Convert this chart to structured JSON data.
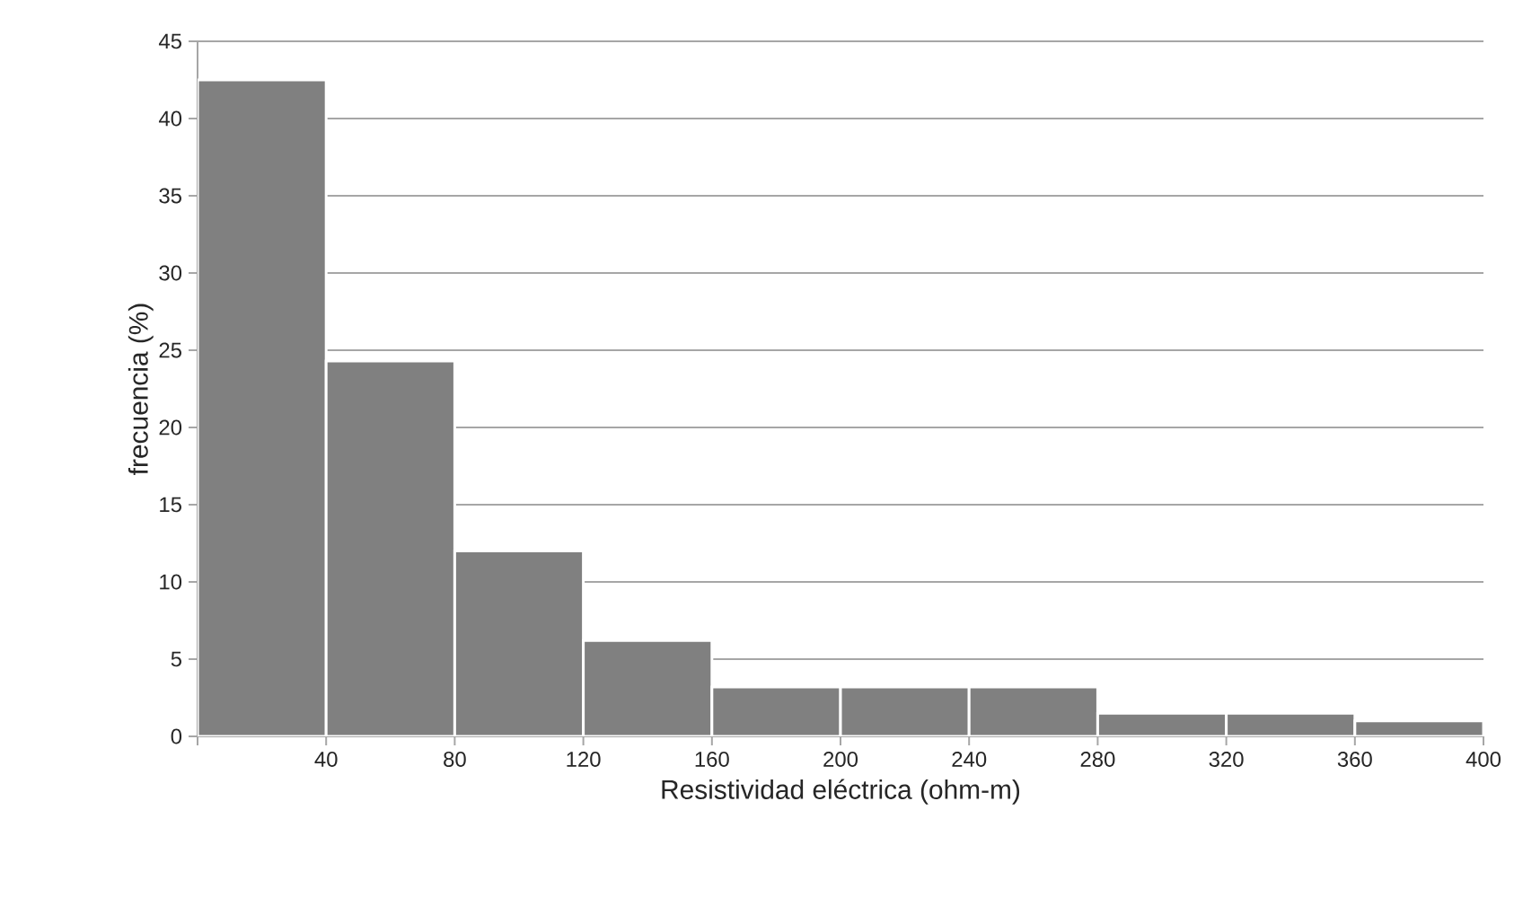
{
  "chart_data": {
    "type": "histogram",
    "xlabel": "Resistividad eléctrica (ohm-m)",
    "ylabel": "frecuencia (%)",
    "bins": [
      0,
      40,
      80,
      120,
      160,
      200,
      240,
      280,
      320,
      360,
      400
    ],
    "values": [
      42.5,
      24.3,
      12.0,
      6.2,
      3.2,
      3.2,
      3.2,
      1.5,
      1.5,
      1.0
    ],
    "color": "#808080",
    "xlim": [
      0,
      400
    ],
    "xticks": [
      {
        "value": 0,
        "label": null
      },
      40,
      80,
      120,
      160,
      200,
      240,
      280,
      320,
      360,
      400
    ],
    "ylim": [
      0,
      45
    ],
    "yticks": [
      0,
      5,
      10,
      15,
      20,
      25,
      30,
      35,
      40,
      45
    ],
    "grid": "y"
  }
}
